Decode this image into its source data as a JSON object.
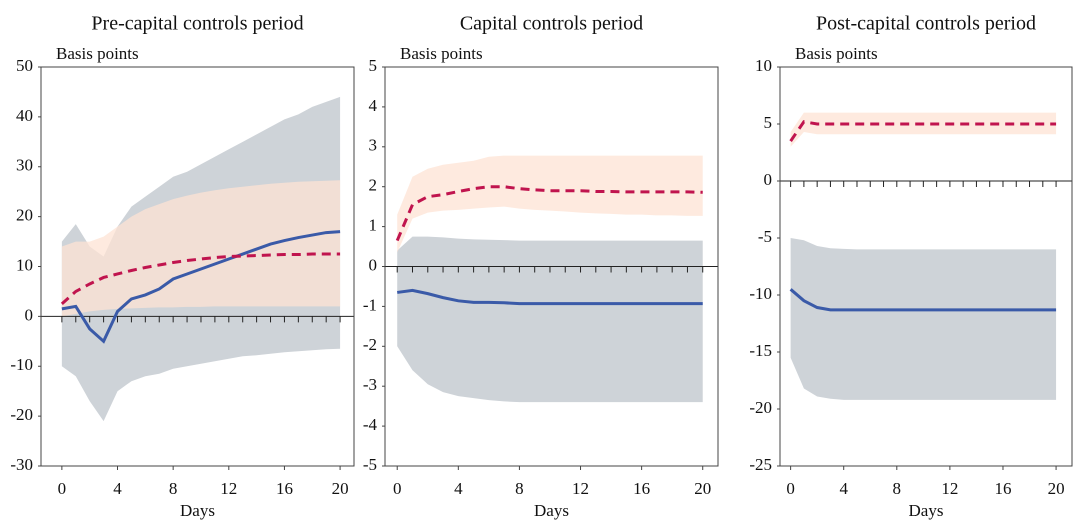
{
  "chart_data": [
    {
      "type": "line",
      "title": "Pre-capital controls period",
      "ylabel": "Basis points",
      "xlabel": "Days",
      "x": [
        0,
        1,
        2,
        3,
        4,
        5,
        6,
        7,
        8,
        9,
        10,
        11,
        12,
        13,
        14,
        15,
        16,
        17,
        18,
        19,
        20
      ],
      "xlim": [
        -1.5,
        21
      ],
      "xticks": [
        0,
        4,
        8,
        12,
        16,
        20
      ],
      "ylim": [
        -30,
        50
      ],
      "yticks": [
        -30,
        -20,
        -10,
        0,
        10,
        20,
        30,
        40,
        50
      ],
      "bands": [
        {
          "color": "#ced3d8",
          "lower": [
            -10,
            -12,
            -17,
            -21,
            -15,
            -13,
            -12,
            -11.5,
            -10.5,
            -10,
            -9.5,
            -9,
            -8.5,
            -8,
            -7.8,
            -7.5,
            -7.2,
            -7,
            -6.8,
            -6.6,
            -6.5
          ],
          "upper": [
            15,
            18.5,
            14,
            12,
            18,
            22,
            24,
            26,
            28,
            29,
            30.5,
            32,
            33.5,
            35,
            36.5,
            38,
            39.5,
            40.5,
            42,
            43,
            44
          ]
        },
        {
          "color": "#fde3d4",
          "lower": [
            0,
            0.5,
            1,
            1.3,
            1.5,
            1.6,
            1.7,
            1.8,
            1.8,
            1.9,
            1.9,
            2,
            2,
            2,
            2,
            2,
            2,
            2,
            2,
            2,
            2
          ],
          "upper": [
            14,
            15,
            15,
            16,
            18,
            20,
            21.5,
            22.5,
            23.5,
            24.2,
            24.8,
            25.3,
            25.7,
            26,
            26.3,
            26.6,
            26.8,
            27,
            27.1,
            27.2,
            27.3
          ]
        }
      ],
      "series": [
        {
          "color": "#3a5aa8",
          "dashed": false,
          "values": [
            1.5,
            2,
            -2.5,
            -5,
            1,
            3.5,
            4.3,
            5.5,
            7.5,
            8.5,
            9.5,
            10.5,
            11.5,
            12.5,
            13.5,
            14.5,
            15.2,
            15.8,
            16.3,
            16.8,
            17
          ]
        },
        {
          "color": "#c0144e",
          "dashed": true,
          "values": [
            2.5,
            5,
            6.5,
            7.8,
            8.5,
            9.2,
            9.8,
            10.3,
            10.8,
            11.2,
            11.5,
            11.8,
            12,
            12.1,
            12.2,
            12.3,
            12.4,
            12.4,
            12.5,
            12.5,
            12.5
          ]
        }
      ]
    },
    {
      "type": "line",
      "title": "Capital controls period",
      "ylabel": "Basis points",
      "xlabel": "Days",
      "x": [
        0,
        1,
        2,
        3,
        4,
        5,
        6,
        7,
        8,
        9,
        10,
        11,
        12,
        13,
        14,
        15,
        16,
        17,
        18,
        19,
        20
      ],
      "xlim": [
        -0.8,
        21
      ],
      "xticks": [
        0,
        4,
        8,
        12,
        16,
        20
      ],
      "ylim": [
        -5,
        5
      ],
      "yticks": [
        -5,
        -4,
        -3,
        -2,
        -1,
        0,
        1,
        2,
        3,
        4,
        5
      ],
      "bands": [
        {
          "color": "#ced3d8",
          "lower": [
            -2,
            -2.6,
            -2.95,
            -3.15,
            -3.25,
            -3.3,
            -3.35,
            -3.38,
            -3.4,
            -3.4,
            -3.4,
            -3.4,
            -3.4,
            -3.4,
            -3.4,
            -3.4,
            -3.4,
            -3.4,
            -3.4,
            -3.4,
            -3.4
          ],
          "upper": [
            0.4,
            0.75,
            0.75,
            0.73,
            0.7,
            0.68,
            0.67,
            0.66,
            0.65,
            0.65,
            0.65,
            0.65,
            0.65,
            0.65,
            0.65,
            0.65,
            0.65,
            0.65,
            0.65,
            0.65,
            0.65
          ]
        },
        {
          "color": "#fde3d4",
          "lower": [
            0.35,
            1.2,
            1.35,
            1.4,
            1.42,
            1.45,
            1.48,
            1.5,
            1.45,
            1.42,
            1.4,
            1.38,
            1.35,
            1.33,
            1.32,
            1.3,
            1.3,
            1.28,
            1.28,
            1.27,
            1.27
          ],
          "upper": [
            1.3,
            2.25,
            2.45,
            2.55,
            2.6,
            2.65,
            2.75,
            2.78,
            2.78,
            2.78,
            2.78,
            2.78,
            2.78,
            2.78,
            2.78,
            2.78,
            2.78,
            2.78,
            2.78,
            2.78,
            2.78
          ]
        }
      ],
      "series": [
        {
          "color": "#3a5aa8",
          "dashed": false,
          "values": [
            -0.65,
            -0.6,
            -0.68,
            -0.78,
            -0.86,
            -0.9,
            -0.9,
            -0.91,
            -0.93,
            -0.93,
            -0.93,
            -0.93,
            -0.93,
            -0.93,
            -0.93,
            -0.93,
            -0.93,
            -0.93,
            -0.93,
            -0.93,
            -0.93
          ]
        },
        {
          "color": "#c0144e",
          "dashed": true,
          "values": [
            0.65,
            1.55,
            1.75,
            1.8,
            1.88,
            1.95,
            2,
            2,
            1.95,
            1.92,
            1.9,
            1.9,
            1.9,
            1.88,
            1.88,
            1.87,
            1.87,
            1.87,
            1.87,
            1.87,
            1.86
          ]
        }
      ]
    },
    {
      "type": "line",
      "title": "Post-capital controls period",
      "ylabel": "Basis points",
      "xlabel": "Days",
      "x": [
        0,
        1,
        2,
        3,
        4,
        5,
        6,
        7,
        8,
        9,
        10,
        11,
        12,
        13,
        14,
        15,
        16,
        17,
        18,
        19,
        20
      ],
      "xlim": [
        -0.8,
        21.2
      ],
      "xticks": [
        0,
        4,
        8,
        12,
        16,
        20
      ],
      "ylim": [
        -25,
        10
      ],
      "yticks": [
        -25,
        -20,
        -15,
        -10,
        -5,
        0,
        5,
        10
      ],
      "bands": [
        {
          "color": "#ced3d8",
          "lower": [
            -15.5,
            -18.2,
            -18.9,
            -19.1,
            -19.2,
            -19.2,
            -19.2,
            -19.2,
            -19.2,
            -19.2,
            -19.2,
            -19.2,
            -19.2,
            -19.2,
            -19.2,
            -19.2,
            -19.2,
            -19.2,
            -19.2,
            -19.2,
            -19.2
          ],
          "upper": [
            -5,
            -5.2,
            -5.7,
            -5.9,
            -5.95,
            -6,
            -6,
            -6,
            -6,
            -6,
            -6,
            -6,
            -6,
            -6,
            -6,
            -6,
            -6,
            -6,
            -6,
            -6,
            -6
          ]
        },
        {
          "color": "#fde3d4",
          "lower": [
            3,
            4.3,
            4.1,
            4.1,
            4.1,
            4.1,
            4.1,
            4.1,
            4.1,
            4.1,
            4.1,
            4.1,
            4.1,
            4.1,
            4.1,
            4.1,
            4.1,
            4.1,
            4.1,
            4.1,
            4.1
          ],
          "upper": [
            4.3,
            6,
            6,
            6,
            6,
            6,
            6,
            6,
            6,
            6,
            6,
            6,
            6,
            6,
            6,
            6,
            6,
            6,
            6,
            6,
            6
          ]
        }
      ],
      "series": [
        {
          "color": "#3a5aa8",
          "dashed": false,
          "values": [
            -9.5,
            -10.5,
            -11.1,
            -11.3,
            -11.3,
            -11.3,
            -11.3,
            -11.3,
            -11.3,
            -11.3,
            -11.3,
            -11.3,
            -11.3,
            -11.3,
            -11.3,
            -11.3,
            -11.3,
            -11.3,
            -11.3,
            -11.3,
            -11.3
          ]
        },
        {
          "color": "#c0144e",
          "dashed": true,
          "values": [
            3.5,
            5.2,
            5,
            5,
            5,
            5,
            5,
            5,
            5,
            5,
            5,
            5,
            5,
            5,
            5,
            5,
            5,
            5,
            5,
            5,
            5
          ]
        }
      ]
    }
  ]
}
